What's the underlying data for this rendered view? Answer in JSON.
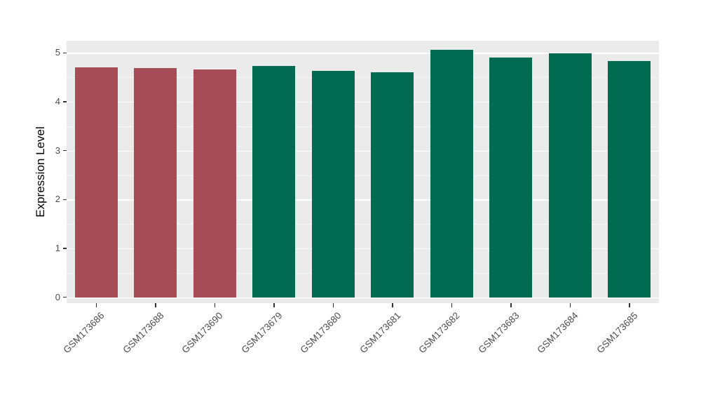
{
  "chart_data": {
    "type": "bar",
    "title": "",
    "xlabel": "",
    "ylabel": "Expression Level",
    "ylim": [
      -0.12,
      5.25
    ],
    "yticks": [
      0,
      1,
      2,
      3,
      4,
      5
    ],
    "ytick_labels": [
      "0",
      "1",
      "2",
      "3",
      "4",
      "5"
    ],
    "categories": [
      "GSM173686",
      "GSM173688",
      "GSM173690",
      "GSM173679",
      "GSM173680",
      "GSM173681",
      "GSM173682",
      "GSM173683",
      "GSM173684",
      "GSM173685"
    ],
    "values": [
      4.7,
      4.69,
      4.66,
      4.73,
      4.63,
      4.61,
      5.06,
      4.9,
      4.99,
      4.83
    ],
    "bar_colors": [
      "#A54C56",
      "#A54C56",
      "#A54C56",
      "#006B51",
      "#006B51",
      "#006B51",
      "#006B51",
      "#006B51",
      "#006B51",
      "#006B51"
    ],
    "group_colors": {
      "group1": "#A54C56",
      "group2": "#006B51"
    },
    "panel_bg": "#EBEBEB",
    "grid_color": "#FFFFFF",
    "legend": "none",
    "grid": "on"
  }
}
